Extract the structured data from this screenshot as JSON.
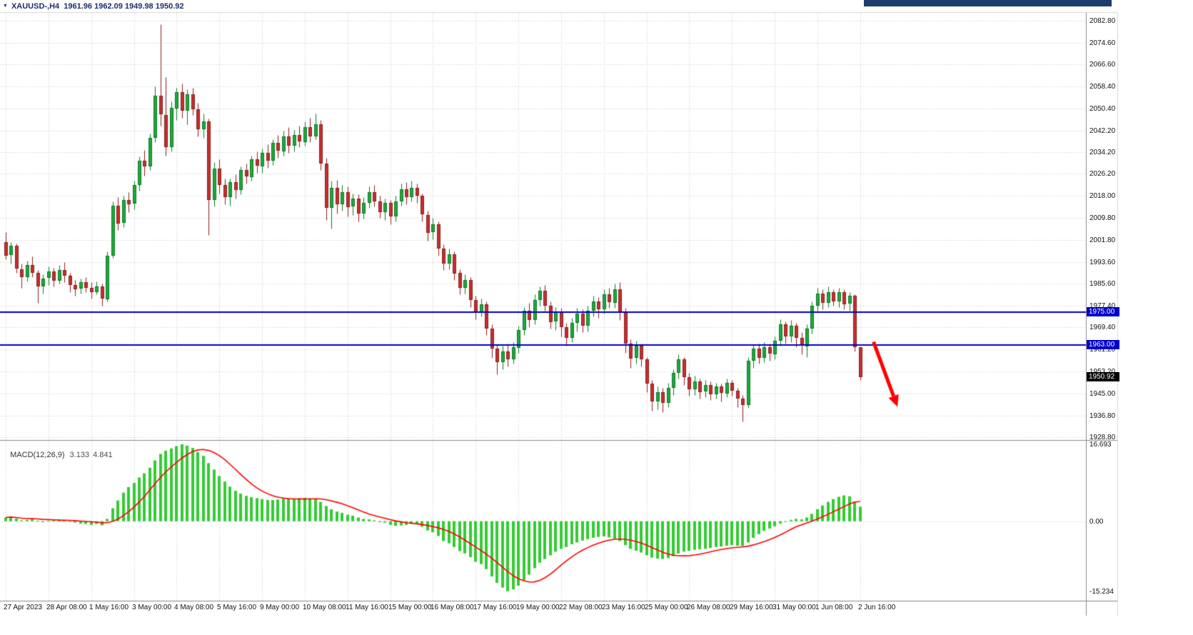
{
  "window": {
    "symbol_info_bar": "XAUUSD-,H4  1961.96 1962.09 1949.98 1950.92"
  },
  "chart_data": {
    "type": "candlestick",
    "symbol": "XAUUSD-",
    "timeframe": "H4",
    "current_bar_ohlc": {
      "open": 1961.96,
      "high": 1962.09,
      "low": 1949.98,
      "close": 1950.92
    },
    "price_axis_ticks": [
      "2082.80",
      "2074.60",
      "2066.60",
      "2058.40",
      "2050.40",
      "2042.20",
      "2034.20",
      "2026.20",
      "2018.00",
      "2009.80",
      "2001.80",
      "1993.60",
      "1985.60",
      "1977.40",
      "1969.40",
      "1961.20",
      "1953.20",
      "1945.00",
      "1936.80",
      "1928.80"
    ],
    "time_axis": {
      "label_every_n_bars": 8,
      "labels": [
        "27 Apr 2023",
        "28 Apr 08:00",
        "1 May 16:00",
        "3 May 00:00",
        "4 May 08:00",
        "5 May 16:00",
        "9 May 00:00",
        "10 May 08:00",
        "11 May 16:00",
        "15 May 00:00",
        "16 May 08:00",
        "17 May 16:00",
        "19 May 00:00",
        "22 May 08:00",
        "23 May 16:00",
        "25 May 00:00",
        "26 May 08:00",
        "29 May 16:00",
        "31 May 00:00",
        "1 Jun 08:00",
        "2 Jun 16:00"
      ]
    },
    "candles_ohlc": [
      [
        2001,
        2004.5,
        1994.5,
        1996
      ],
      [
        1996,
        2001,
        1993,
        1999.5
      ],
      [
        1999.5,
        2000.5,
        1989.5,
        1991
      ],
      [
        1991,
        1993,
        1984,
        1988
      ],
      [
        1988,
        1994,
        1986.5,
        1992.5
      ],
      [
        1992.5,
        1995.5,
        1988,
        1989.5
      ],
      [
        1989.5,
        1990.5,
        1978.5,
        1984.5
      ],
      [
        1984.5,
        1989,
        1982,
        1987.5
      ],
      [
        1987.5,
        1992,
        1985,
        1990
      ],
      [
        1990,
        1991.5,
        1984.5,
        1986.5
      ],
      [
        1986.5,
        1992.5,
        1985.5,
        1990.5
      ],
      [
        1990.5,
        1993.5,
        1986,
        1988.5
      ],
      [
        1988.5,
        1989.5,
        1982.5,
        1985
      ],
      [
        1985,
        1987,
        1981,
        1983.5
      ],
      [
        1983.5,
        1987.5,
        1982,
        1986
      ],
      [
        1986,
        1988,
        1982.5,
        1984
      ],
      [
        1984,
        1986,
        1980,
        1982.5
      ],
      [
        1982.5,
        1986.5,
        1981.5,
        1984.5
      ],
      [
        1984.5,
        1985.5,
        1977.5,
        1980
      ],
      [
        1980,
        1997.5,
        1979,
        1996
      ],
      [
        1996,
        2016,
        1995,
        2014.5
      ],
      [
        2014.5,
        2017.5,
        2005.5,
        2008
      ],
      [
        2008,
        2018,
        2006.5,
        2016.5
      ],
      [
        2016.5,
        2019.5,
        2012,
        2015
      ],
      [
        2015,
        2023.5,
        2013,
        2022
      ],
      [
        2022,
        2032.5,
        2020,
        2031
      ],
      [
        2031,
        2035,
        2025.5,
        2029
      ],
      [
        2029,
        2041,
        2027.5,
        2039.5
      ],
      [
        2039.5,
        2058.5,
        2038,
        2055
      ],
      [
        2055,
        2081.5,
        2044,
        2048
      ],
      [
        2048,
        2062,
        2033,
        2036
      ],
      [
        2036,
        2053,
        2034.5,
        2050.5
      ],
      [
        2050.5,
        2058,
        2046,
        2056.5
      ],
      [
        2056.5,
        2059.5,
        2047,
        2049.5
      ],
      [
        2049.5,
        2057.5,
        2044.5,
        2055.5
      ],
      [
        2055.5,
        2058,
        2048,
        2050
      ],
      [
        2050,
        2052.5,
        2040,
        2042.5
      ],
      [
        2042.5,
        2048.5,
        2039.5,
        2045.5
      ],
      [
        2045.5,
        2046.5,
        2003.5,
        2016.5
      ],
      [
        2016.5,
        2030.5,
        2014,
        2028
      ],
      [
        2028,
        2031.5,
        2019,
        2022
      ],
      [
        2022,
        2024.5,
        2015,
        2017.5
      ],
      [
        2017.5,
        2024.5,
        2014.5,
        2023
      ],
      [
        2023,
        2026,
        2017,
        2020
      ],
      [
        2020,
        2029,
        2018.5,
        2027.5
      ],
      [
        2027.5,
        2030,
        2022.5,
        2025
      ],
      [
        2025,
        2033,
        2023.5,
        2031.5
      ],
      [
        2031.5,
        2034.5,
        2026.5,
        2029
      ],
      [
        2029,
        2035.5,
        2026.5,
        2034
      ],
      [
        2034,
        2037,
        2028.5,
        2031
      ],
      [
        2031,
        2039,
        2029.5,
        2037.5
      ],
      [
        2037.5,
        2040.5,
        2032,
        2034.5
      ],
      [
        2034.5,
        2042,
        2033,
        2040
      ],
      [
        2040,
        2043.5,
        2034,
        2036.5
      ],
      [
        2036.5,
        2042.5,
        2034.5,
        2040.5
      ],
      [
        2040.5,
        2044,
        2036,
        2038
      ],
      [
        2038,
        2045.5,
        2036.5,
        2043.5
      ],
      [
        2043.5,
        2047,
        2038,
        2040
      ],
      [
        2040,
        2048.5,
        2039,
        2044.5
      ],
      [
        2044.5,
        2046,
        2027.5,
        2030
      ],
      [
        2030,
        2032,
        2009,
        2013.5
      ],
      [
        2013.5,
        2023.5,
        2006,
        2021
      ],
      [
        2021,
        2024,
        2011.5,
        2015
      ],
      [
        2015,
        2022,
        2012.5,
        2019.5
      ],
      [
        2019.5,
        2021.5,
        2010.5,
        2014
      ],
      [
        2014,
        2019,
        2011,
        2017
      ],
      [
        2017,
        2018.5,
        2008.5,
        2011.5
      ],
      [
        2011.5,
        2017.5,
        2009.5,
        2015.5
      ],
      [
        2015.5,
        2021.5,
        2013.5,
        2019.5
      ],
      [
        2019.5,
        2022,
        2014,
        2016
      ],
      [
        2016,
        2018,
        2010,
        2012
      ],
      [
        2012,
        2017,
        2009,
        2015.5
      ],
      [
        2015.5,
        2016.5,
        2007.5,
        2010.5
      ],
      [
        2010.5,
        2018,
        2008.5,
        2016
      ],
      [
        2016,
        2022.5,
        2014.5,
        2020.5
      ],
      [
        2020.5,
        2023,
        2015,
        2017.5
      ],
      [
        2017.5,
        2023.5,
        2016,
        2021
      ],
      [
        2021,
        2022.5,
        2015.5,
        2018
      ],
      [
        2018,
        2019,
        2008.5,
        2011
      ],
      [
        2011,
        2012.5,
        2001.5,
        2004.5
      ],
      [
        2004.5,
        2010,
        2002,
        2007.5
      ],
      [
        2007.5,
        2008.5,
        1996,
        1998.5
      ],
      [
        1998.5,
        2000,
        1990.5,
        1993
      ],
      [
        1993,
        1998.5,
        1991,
        1996.5
      ],
      [
        1996.5,
        1997.5,
        1987,
        1989.5
      ],
      [
        1989.5,
        1991,
        1981.5,
        1984
      ],
      [
        1984,
        1989,
        1982,
        1987
      ],
      [
        1987,
        1988,
        1977,
        1979.5
      ],
      [
        1979.5,
        1981,
        1972.5,
        1975
      ],
      [
        1975,
        1980,
        1973.5,
        1978
      ],
      [
        1978,
        1979,
        1966.5,
        1969
      ],
      [
        1969,
        1970.5,
        1958,
        1961.5
      ],
      [
        1961.5,
        1963,
        1952,
        1956.5
      ],
      [
        1956.5,
        1962.5,
        1954,
        1960.5
      ],
      [
        1960.5,
        1963.5,
        1955,
        1957.5
      ],
      [
        1957.5,
        1964,
        1956,
        1962
      ],
      [
        1962,
        1970,
        1960,
        1968.5
      ],
      [
        1968.5,
        1977,
        1966.5,
        1975.5
      ],
      [
        1975.5,
        1978.5,
        1969.5,
        1972
      ],
      [
        1972,
        1981.5,
        1970.5,
        1979.5
      ],
      [
        1979.5,
        1984.5,
        1977.5,
        1983
      ],
      [
        1983,
        1985,
        1975.5,
        1977.5
      ],
      [
        1977.5,
        1979,
        1969,
        1971.5
      ],
      [
        1971.5,
        1977,
        1968.5,
        1975
      ],
      [
        1975,
        1976.5,
        1966,
        1969.5
      ],
      [
        1969.5,
        1971,
        1962.5,
        1965.5
      ],
      [
        1965.5,
        1973,
        1964,
        1971
      ],
      [
        1971,
        1976.5,
        1968,
        1974.5
      ],
      [
        1974.5,
        1976,
        1967.5,
        1970
      ],
      [
        1970,
        1977.5,
        1968,
        1975.5
      ],
      [
        1975.5,
        1981,
        1973.5,
        1979
      ],
      [
        1979,
        1980.5,
        1973,
        1976
      ],
      [
        1976,
        1983.5,
        1974.5,
        1981.5
      ],
      [
        1981.5,
        1984,
        1976.5,
        1978.5
      ],
      [
        1978.5,
        1985.5,
        1976.5,
        1983.5
      ],
      [
        1983.5,
        1986,
        1972,
        1975
      ],
      [
        1975,
        1976.5,
        1960,
        1963.5
      ],
      [
        1963.5,
        1965,
        1954.5,
        1958
      ],
      [
        1958,
        1964.5,
        1956,
        1962.5
      ],
      [
        1962.5,
        1963.5,
        1955,
        1957.5
      ],
      [
        1957.5,
        1958.5,
        1945.5,
        1948.5
      ],
      [
        1948.5,
        1950,
        1938.5,
        1942
      ],
      [
        1942,
        1947.5,
        1939,
        1945.5
      ],
      [
        1945.5,
        1947,
        1938,
        1941.5
      ],
      [
        1941.5,
        1949,
        1940,
        1947
      ],
      [
        1947,
        1954,
        1944.5,
        1952.5
      ],
      [
        1952.5,
        1959.5,
        1950.5,
        1957.5
      ],
      [
        1957.5,
        1958.5,
        1948,
        1951
      ],
      [
        1951,
        1952.5,
        1944,
        1946.5
      ],
      [
        1946.5,
        1951.5,
        1944.5,
        1949.5
      ],
      [
        1949.5,
        1950.5,
        1943,
        1945.5
      ],
      [
        1945.5,
        1950,
        1943.5,
        1948
      ],
      [
        1948,
        1949.5,
        1942.5,
        1944.5
      ],
      [
        1944.5,
        1949,
        1943,
        1947.5
      ],
      [
        1947.5,
        1948.5,
        1942,
        1945
      ],
      [
        1945,
        1950.5,
        1943.5,
        1949
      ],
      [
        1949,
        1950,
        1944,
        1946
      ],
      [
        1946,
        1947,
        1940,
        1943
      ],
      [
        1943,
        1944.5,
        1934.5,
        1940.5
      ],
      [
        1940.5,
        1958.5,
        1939.5,
        1957
      ],
      [
        1957,
        1963,
        1954.5,
        1961.5
      ],
      [
        1961.5,
        1963.5,
        1956,
        1958
      ],
      [
        1958,
        1964,
        1956.5,
        1962
      ],
      [
        1962,
        1963.5,
        1957,
        1959.5
      ],
      [
        1959.5,
        1966,
        1957.5,
        1964.5
      ],
      [
        1964.5,
        1972.5,
        1962.5,
        1970.5
      ],
      [
        1970.5,
        1971.5,
        1963.5,
        1966
      ],
      [
        1966,
        1972,
        1964,
        1970
      ],
      [
        1970,
        1971,
        1962,
        1965.5
      ],
      [
        1965.5,
        1967.5,
        1959.5,
        1962.5
      ],
      [
        1962.5,
        1970.5,
        1958.5,
        1969
      ],
      [
        1969,
        1979,
        1967,
        1977.5
      ],
      [
        1977.5,
        1984,
        1975.5,
        1982
      ],
      [
        1982,
        1983.5,
        1976,
        1978.5
      ],
      [
        1978.5,
        1984.5,
        1977,
        1982.5
      ],
      [
        1982.5,
        1983.5,
        1977.5,
        1979
      ],
      [
        1979,
        1984,
        1977,
        1982.5
      ],
      [
        1982.5,
        1983.5,
        1976,
        1978
      ],
      [
        1978,
        1982.5,
        1975.5,
        1981
      ],
      [
        1981,
        1981.5,
        1960.5,
        1962
      ],
      [
        1961.96,
        1962.09,
        1949.98,
        1950.92
      ]
    ],
    "horizontal_lines": [
      {
        "price": 1975.0,
        "label": "1975.00",
        "color": "#0000C8"
      },
      {
        "price": 1963.0,
        "label": "1963.00",
        "color": "#0000C8"
      }
    ],
    "current_price": {
      "price": 1950.92,
      "label": "1950.92",
      "badge_color": "#000000"
    },
    "trend_arrow": {
      "from_bar": 162.5,
      "from_price": 1964,
      "to_bar": 167,
      "to_price": 1940,
      "color": "#FF0000"
    },
    "macd": {
      "label": "MACD(12,26,9)",
      "macd_value": "3.133",
      "signal_value": "4.841",
      "axis_ticks": [
        "16.693",
        "0.00",
        "-15.234"
      ],
      "y_max": 16.693,
      "y_min": -15.234,
      "signal_period": 9,
      "histogram_color": "#33CC33",
      "signal_color": "#FF0000",
      "histogram": [
        0.8,
        1,
        0.6,
        0.2,
        0.3,
        0.4,
        0.1,
        -0.2,
        0.1,
        0.3,
        0.4,
        0.3,
        0,
        -0.3,
        -0.5,
        -0.6,
        -0.8,
        -0.6,
        -0.9,
        0.5,
        2.8,
        4.5,
        6.2,
        7.4,
        8.3,
        9.5,
        10.4,
        11.6,
        13.2,
        14.6,
        15.3,
        15.8,
        16.3,
        16.7,
        16.4,
        15.9,
        15,
        14.2,
        12.6,
        11.2,
        9.8,
        8.6,
        7.5,
        6.6,
        6,
        5.5,
        5.2,
        5,
        4.8,
        4.6,
        4.6,
        4.7,
        4.9,
        4.8,
        4.9,
        5,
        5.1,
        5,
        4.9,
        4.2,
        3.3,
        2.6,
        2.1,
        1.8,
        1.4,
        1.2,
        0.8,
        0.5,
        0.4,
        0.2,
        -0.2,
        -0.3,
        -0.8,
        -1,
        -0.9,
        -0.8,
        -0.6,
        -0.7,
        -1.2,
        -2,
        -2.4,
        -3.2,
        -4.3,
        -4.8,
        -5.6,
        -6.5,
        -7,
        -7.8,
        -8.8,
        -9.3,
        -10.4,
        -12,
        -13.4,
        -14.4,
        -15.2,
        -14.8,
        -14,
        -12.8,
        -11.6,
        -10.2,
        -9,
        -8.2,
        -7.4,
        -6.6,
        -6,
        -5.6,
        -5,
        -4.6,
        -4.2,
        -3.9,
        -3.6,
        -3.4,
        -3.3,
        -3.5,
        -3.8,
        -4.3,
        -5.2,
        -6,
        -6.4,
        -6.8,
        -7.4,
        -7.9,
        -8.1,
        -8.2,
        -8,
        -7.6,
        -7,
        -6.6,
        -6.4,
        -6.2,
        -6.1,
        -6,
        -5.8,
        -5.6,
        -5.5,
        -5.3,
        -5.2,
        -5.3,
        -5.4,
        -4.6,
        -3.6,
        -2.8,
        -2.1,
        -1.6,
        -1.1,
        -0.5,
        -0.1,
        0.3,
        0.5,
        0.4,
        0.8,
        1.6,
        2.6,
        3.4,
        4.2,
        4.8,
        5.3,
        5.6,
        5.4,
        4.3,
        3.133
      ]
    },
    "colors": {
      "background": "#FFFFFF",
      "grid": "#CCCCCC",
      "bull": "#1FA83C",
      "bull_edge": "#0E7A26",
      "bear": "#C62F2F",
      "bear_edge": "#8E1F1F",
      "separator": "#8A8A8A"
    }
  }
}
